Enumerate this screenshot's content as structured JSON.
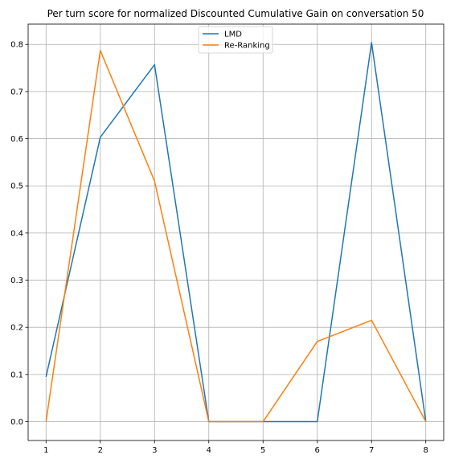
{
  "chart_data": {
    "type": "line",
    "title": "Per turn score for normalized Discounted Cumulative Gain on conversation 50",
    "xlabel": "",
    "ylabel": "",
    "x": [
      1,
      2,
      3,
      4,
      5,
      6,
      7,
      8
    ],
    "xticks": [
      "1",
      "2",
      "3",
      "4",
      "5",
      "6",
      "7",
      "8"
    ],
    "yticks": [
      "0.0",
      "0.1",
      "0.2",
      "0.3",
      "0.4",
      "0.5",
      "0.6",
      "0.7",
      "0.8"
    ],
    "xlim": [
      0.67,
      8.33
    ],
    "ylim": [
      -0.04,
      0.843
    ],
    "grid": true,
    "legend_position": "top-center",
    "series": [
      {
        "name": "LMD",
        "color": "#1f77b4",
        "values": [
          0.095,
          0.603,
          0.757,
          0.0,
          0.0,
          0.0,
          0.804,
          0.0
        ]
      },
      {
        "name": "Re-Ranking",
        "color": "#ff7f0e",
        "values": [
          0.0,
          0.787,
          0.51,
          0.0,
          0.0,
          0.17,
          0.215,
          0.0
        ]
      }
    ]
  }
}
